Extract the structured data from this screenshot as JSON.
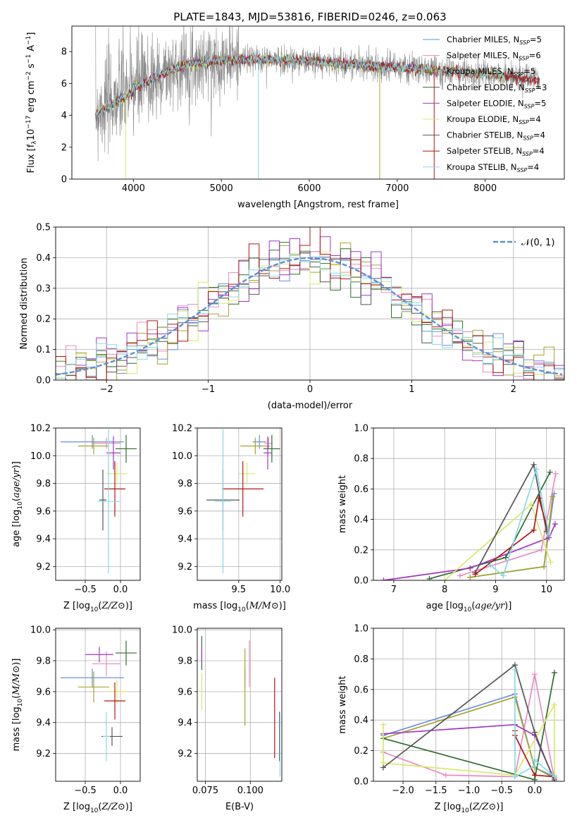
{
  "figure": {
    "title": "PLATE=1843, MJD=53816, FIBERID=0246, z=0.063"
  },
  "colors": {
    "Chabrier MILES": "#6d8fdc",
    "Salpeter MILES": "#e98bc1",
    "Kroupa MILES": "#a4a42a",
    "Chabrier ELODIE": "#2e6b2e",
    "Salpeter ELODIE": "#a335c4",
    "Kroupa ELODIE": "#d9e86a",
    "Chabrier STELIB": "#555555",
    "Salpeter STELIB": "#b31313",
    "Kroupa STELIB": "#86d9e6",
    "data": "#888888",
    "gauss": "#5b8fd6"
  },
  "chart_data": [
    {
      "id": "spectrum",
      "type": "line",
      "title": "PLATE=1843, MJD=53816, FIBERID=0246, z=0.063",
      "xlabel": "wavelength [Angstrom, rest frame]",
      "ylabel": "Flux [fλ10⁻¹⁷ erg cm⁻² s⁻¹ A⁻¹]",
      "xlim": [
        3300,
        8900
      ],
      "ylim": [
        0,
        9.6
      ],
      "xticks": [
        4000,
        5000,
        6000,
        7000,
        8000
      ],
      "yticks": [
        0,
        2,
        4,
        6,
        8
      ],
      "legend": "top-right",
      "legend_entries": [
        {
          "label": "Chabrier MILES, N",
          "sub": "SSP",
          "tail": "=5",
          "key": "Chabrier MILES"
        },
        {
          "label": "Salpeter MILES, N",
          "sub": "SSP",
          "tail": "=6",
          "key": "Salpeter MILES"
        },
        {
          "label": "Kroupa MILES, N",
          "sub": "SSP",
          "tail": "=5",
          "key": "Kroupa MILES"
        },
        {
          "label": "Chabrier ELODIE, N",
          "sub": "SSP",
          "tail": "=3",
          "key": "Chabrier ELODIE"
        },
        {
          "label": "Salpeter ELODIE, N",
          "sub": "SSP",
          "tail": "=5",
          "key": "Salpeter ELODIE"
        },
        {
          "label": "Kroupa ELODIE, N",
          "sub": "SSP",
          "tail": "=4",
          "key": "Kroupa ELODIE"
        },
        {
          "label": "Chabrier STELIB, N",
          "sub": "SSP",
          "tail": "=4",
          "key": "Chabrier STELIB"
        },
        {
          "label": "Salpeter STELIB, N",
          "sub": "SSP",
          "tail": "=4",
          "key": "Salpeter STELIB"
        },
        {
          "label": "Kroupa STELIB, N",
          "sub": "SSP",
          "tail": "=4",
          "key": "Kroupa STELIB"
        }
      ],
      "continuum": [
        [
          3570,
          4.3
        ],
        [
          3700,
          4.8
        ],
        [
          3850,
          5.3
        ],
        [
          3950,
          5.6
        ],
        [
          4100,
          6.0
        ],
        [
          4300,
          6.5
        ],
        [
          4600,
          7.2
        ],
        [
          5000,
          7.45
        ],
        [
          5500,
          7.5
        ],
        [
          6000,
          7.4
        ],
        [
          6500,
          7.2
        ],
        [
          7000,
          7.0
        ],
        [
          7400,
          6.85
        ],
        [
          7800,
          6.65
        ],
        [
          8200,
          6.45
        ],
        [
          8600,
          6.2
        ],
        [
          8800,
          6.1
        ]
      ],
      "model_end": 7420,
      "data_end": 8620,
      "spikes": [
        [
          3910,
          0
        ],
        [
          5420,
          0
        ],
        [
          6800,
          0
        ],
        [
          7420,
          0
        ]
      ]
    },
    {
      "id": "residuals",
      "type": "histogram",
      "xlabel": "(data-model)/error",
      "ylabel": "Normed distribution",
      "xlim": [
        -2.5,
        2.5
      ],
      "ylim": [
        0,
        0.5
      ],
      "xticks": [
        -2,
        -1,
        0,
        1,
        2
      ],
      "yticks": [
        0.0,
        0.1,
        0.2,
        0.3,
        0.4,
        0.5
      ],
      "bin_width": 0.1,
      "legend_label": "𝒩(0, 1)",
      "gaussian": {
        "mu": 0,
        "sigma": 1
      }
    },
    {
      "id": "age-vs-Z",
      "type": "errorbar",
      "xlabel": "Z [log10(Z/Z⊙)]",
      "ylabel": "age  [log10(age/yr)]",
      "xlim": [
        -0.92,
        0.28
      ],
      "ylim": [
        9.1,
        10.2
      ],
      "xticks": [
        -0.5,
        0.0
      ],
      "yticks": [
        9.2,
        9.4,
        9.6,
        9.8,
        10.0,
        10.2
      ],
      "points": [
        {
          "key": "Chabrier MILES",
          "x": -0.4,
          "xerr": 0.45,
          "y": 10.1,
          "yerr": 0.05
        },
        {
          "key": "Salpeter MILES",
          "x": -0.2,
          "xerr": 0.2,
          "y": 10.09,
          "yerr": 0.04
        },
        {
          "key": "Kroupa MILES",
          "x": -0.38,
          "xerr": 0.22,
          "y": 10.07,
          "yerr": 0.06
        },
        {
          "key": "Chabrier ELODIE",
          "x": 0.08,
          "xerr": 0.15,
          "y": 10.05,
          "yerr": 0.1
        },
        {
          "key": "Salpeter ELODIE",
          "x": -0.1,
          "xerr": 0.1,
          "y": 10.02,
          "yerr": 0.12
        },
        {
          "key": "Kroupa ELODIE",
          "x": -0.05,
          "xerr": 0.15,
          "y": 9.87,
          "yerr": 0.08
        },
        {
          "key": "Chabrier STELIB",
          "x": -0.25,
          "xerr": 0.05,
          "y": 9.68,
          "yerr": 0.22
        },
        {
          "key": "Salpeter STELIB",
          "x": -0.08,
          "xerr": 0.15,
          "y": 9.76,
          "yerr": 0.2
        },
        {
          "key": "Kroupa STELIB",
          "x": -0.17,
          "xerr": 0.16,
          "y": 9.67,
          "yerr": 0.52
        }
      ]
    },
    {
      "id": "age-vs-mass",
      "type": "errorbar",
      "xlabel": "mass [log10(M/M⊙)]",
      "ylabel": "",
      "xlim": [
        9.0,
        10.02
      ],
      "ylim": [
        9.1,
        10.2
      ],
      "xticks": [
        9.5,
        10.0
      ],
      "yticks": [
        9.2,
        9.4,
        9.6,
        9.8,
        10.0,
        10.2
      ],
      "points": [
        {
          "key": "Chabrier MILES",
          "x": 9.75,
          "xerr": 0.08,
          "y": 10.1,
          "yerr": 0.05
        },
        {
          "key": "Salpeter MILES",
          "x": 9.86,
          "xerr": 0.05,
          "y": 10.09,
          "yerr": 0.04
        },
        {
          "key": "Kroupa MILES",
          "x": 9.7,
          "xerr": 0.18,
          "y": 10.07,
          "yerr": 0.06
        },
        {
          "key": "Chabrier ELODIE",
          "x": 9.9,
          "xerr": 0.1,
          "y": 10.05,
          "yerr": 0.1
        },
        {
          "key": "Salpeter ELODIE",
          "x": 9.85,
          "xerr": 0.05,
          "y": 10.02,
          "yerr": 0.12
        },
        {
          "key": "Kroupa ELODIE",
          "x": 9.6,
          "xerr": 0.1,
          "y": 9.87,
          "yerr": 0.08
        },
        {
          "key": "Chabrier STELIB",
          "x": 9.31,
          "xerr": 0.2,
          "y": 9.68,
          "yerr": 0.22
        },
        {
          "key": "Salpeter STELIB",
          "x": 9.55,
          "xerr": 0.25,
          "y": 9.76,
          "yerr": 0.2
        },
        {
          "key": "Kroupa STELIB",
          "x": 9.31,
          "xerr": 0.1,
          "y": 9.67,
          "yerr": 0.52
        }
      ]
    },
    {
      "id": "weight-vs-age",
      "type": "line",
      "xlabel": "age  [log10(age/yr)]",
      "ylabel": "mass weight",
      "xlim": [
        6.6,
        10.35
      ],
      "ylim": [
        0,
        1.0
      ],
      "xticks": [
        7,
        8,
        9,
        10
      ],
      "yticks": [
        0.0,
        0.2,
        0.4,
        0.6,
        0.8,
        1.0
      ],
      "series": [
        {
          "key": "Chabrier MILES",
          "points": [
            [
              8.5,
              0.02
            ],
            [
              9.95,
              0.09
            ],
            [
              10.15,
              0.57
            ]
          ]
        },
        {
          "key": "Salpeter MILES",
          "points": [
            [
              8.3,
              0.03
            ],
            [
              9.9,
              0.2
            ],
            [
              10.18,
              0.7
            ]
          ]
        },
        {
          "key": "Kroupa MILES",
          "points": [
            [
              8.5,
              0.02
            ],
            [
              9.95,
              0.09
            ],
            [
              10.12,
              0.55
            ]
          ]
        },
        {
          "key": "Chabrier ELODIE",
          "points": [
            [
              7.7,
              0.01
            ],
            [
              9.2,
              0.15
            ],
            [
              10.07,
              0.71
            ]
          ]
        },
        {
          "key": "Salpeter ELODIE",
          "points": [
            [
              6.8,
              0.0
            ],
            [
              8.5,
              0.08
            ],
            [
              10.05,
              0.28
            ],
            [
              10.17,
              0.37
            ]
          ]
        },
        {
          "key": "Kroupa ELODIE",
          "points": [
            [
              8.0,
              0.0
            ],
            [
              9.7,
              0.5
            ],
            [
              10.08,
              0.12
            ]
          ]
        },
        {
          "key": "Chabrier STELIB",
          "points": [
            [
              8.6,
              0.05
            ],
            [
              9.75,
              0.76
            ],
            [
              10.0,
              0.32
            ]
          ]
        },
        {
          "key": "Salpeter STELIB",
          "points": [
            [
              8.6,
              0.04
            ],
            [
              9.75,
              0.33
            ],
            [
              9.85,
              0.54
            ],
            [
              10.05,
              0.3
            ]
          ]
        },
        {
          "key": "Kroupa STELIB",
          "points": [
            [
              8.9,
              0.1
            ],
            [
              9.15,
              0.03
            ],
            [
              9.8,
              0.73
            ],
            [
              10.05,
              0.3
            ]
          ]
        }
      ]
    },
    {
      "id": "mass-vs-Z",
      "type": "errorbar",
      "xlabel": "Z [log10(Z/Z⊙)]",
      "ylabel": "mass [log10(M/M⊙)]",
      "xlim": [
        -0.92,
        0.28
      ],
      "ylim": [
        9.02,
        10.01
      ],
      "xticks": [
        -0.5,
        0.0
      ],
      "yticks": [
        9.2,
        9.4,
        9.6,
        9.8,
        10.0
      ],
      "points": [
        {
          "key": "Chabrier MILES",
          "x": -0.4,
          "xerr": 0.45,
          "y": 9.69,
          "yerr": 0.06
        },
        {
          "key": "Salpeter MILES",
          "x": -0.2,
          "xerr": 0.2,
          "y": 9.78,
          "yerr": 0.08
        },
        {
          "key": "Kroupa MILES",
          "x": -0.38,
          "xerr": 0.22,
          "y": 9.63,
          "yerr": 0.1
        },
        {
          "key": "Chabrier ELODIE",
          "x": 0.08,
          "xerr": 0.15,
          "y": 9.85,
          "yerr": 0.08
        },
        {
          "key": "Salpeter ELODIE",
          "x": -0.3,
          "xerr": 0.2,
          "y": 9.84,
          "yerr": 0.05
        },
        {
          "key": "Kroupa ELODIE",
          "x": -0.05,
          "xerr": 0.15,
          "y": 9.6,
          "yerr": 0.08
        },
        {
          "key": "Chabrier STELIB",
          "x": -0.12,
          "xerr": 0.15,
          "y": 9.31,
          "yerr": 0.06
        },
        {
          "key": "Salpeter STELIB",
          "x": -0.08,
          "xerr": 0.15,
          "y": 9.54,
          "yerr": 0.12
        },
        {
          "key": "Kroupa STELIB",
          "x": -0.2,
          "xerr": 0.05,
          "y": 9.31,
          "yerr": 0.16
        }
      ]
    },
    {
      "id": "mass-vs-EBV",
      "type": "errorbar",
      "xlabel": "E(B-V)",
      "ylabel": "",
      "xlim": [
        0.0705,
        0.1175
      ],
      "ylim": [
        9.02,
        10.01
      ],
      "xticks": [
        0.075,
        0.1
      ],
      "yticks": [
        9.2,
        9.4,
        9.6,
        9.8,
        10.0
      ],
      "points": [
        {
          "key": "Chabrier MILES",
          "x": 0.097,
          "xerr": 0,
          "y": 9.69,
          "yerr": 0.06
        },
        {
          "key": "Salpeter MILES",
          "x": 0.0995,
          "xerr": 0,
          "y": 9.78,
          "yerr": 0.15
        },
        {
          "key": "Kroupa MILES",
          "x": 0.097,
          "xerr": 0,
          "y": 9.63,
          "yerr": 0.25
        },
        {
          "key": "Chabrier ELODIE",
          "x": 0.073,
          "xerr": 0,
          "y": 9.85,
          "yerr": 0.11
        },
        {
          "key": "Salpeter ELODIE",
          "x": 0.073,
          "xerr": 0,
          "y": 9.84,
          "yerr": 0.05
        },
        {
          "key": "Kroupa ELODIE",
          "x": 0.073,
          "xerr": 0,
          "y": 9.6,
          "yerr": 0.12
        },
        {
          "key": "Chabrier STELIB",
          "x": 0.1162,
          "xerr": 0,
          "y": 9.31,
          "yerr": 0.16
        },
        {
          "key": "Salpeter STELIB",
          "x": 0.1135,
          "xerr": 0,
          "y": 9.43,
          "yerr": 0.26
        },
        {
          "key": "Kroupa STELIB",
          "x": 0.1165,
          "xerr": 0,
          "y": 9.25,
          "yerr": 0.2
        }
      ]
    },
    {
      "id": "weight-vs-Z",
      "type": "line",
      "xlabel": "Z [log10(Z/Z⊙)]",
      "ylabel": "mass weight",
      "xlim": [
        -2.45,
        0.45
      ],
      "ylim": [
        0,
        1.0
      ],
      "xticks": [
        -2.0,
        -1.5,
        -1.0,
        -0.5,
        0.0
      ],
      "yticks": [
        0.0,
        0.2,
        0.4,
        0.6,
        0.8,
        1.0
      ],
      "series": [
        {
          "key": "Chabrier MILES",
          "points": [
            [
              -2.3,
              0.3
            ],
            [
              -0.3,
              0.57
            ],
            [
              0.0,
              0.09
            ],
            [
              0.3,
              0.03
            ]
          ]
        },
        {
          "key": "Salpeter MILES",
          "points": [
            [
              -2.3,
              0.19
            ],
            [
              -1.35,
              0.04
            ],
            [
              -0.3,
              0.03
            ],
            [
              0.0,
              0.7
            ],
            [
              0.3,
              0.01
            ]
          ]
        },
        {
          "key": "Kroupa MILES",
          "points": [
            [
              -2.3,
              0.28
            ],
            [
              -0.3,
              0.55
            ],
            [
              0.0,
              0.09
            ],
            [
              0.3,
              0.02
            ]
          ]
        },
        {
          "key": "Chabrier ELODIE",
          "points": [
            [
              -2.3,
              0.28
            ],
            [
              0.0,
              0.01
            ],
            [
              0.3,
              0.71
            ]
          ]
        },
        {
          "key": "Salpeter ELODIE",
          "points": [
            [
              -2.3,
              0.31
            ],
            [
              -0.3,
              0.37
            ],
            [
              0.0,
              0.3
            ],
            [
              0.3,
              0.01
            ]
          ]
        },
        {
          "key": "Kroupa ELODIE",
          "points": [
            [
              -2.3,
              0.37
            ],
            [
              -2.3,
              0.12
            ],
            [
              -0.3,
              0.04
            ],
            [
              0.3,
              0.5
            ],
            [
              0.3,
              0.04
            ]
          ]
        },
        {
          "key": "Chabrier STELIB",
          "points": [
            [
              -2.3,
              0.09
            ],
            [
              -0.3,
              0.76
            ],
            [
              0.0,
              0.32
            ],
            [
              0.3,
              0.0
            ]
          ]
        },
        {
          "key": "Salpeter STELIB",
          "points": [
            [
              -0.3,
              0.33
            ],
            [
              -0.3,
              0.3
            ],
            [
              0.0,
              0.04
            ],
            [
              0.3,
              0.03
            ]
          ]
        },
        {
          "key": "Kroupa STELIB",
          "points": [
            [
              -0.3,
              0.73
            ],
            [
              -0.3,
              0.03
            ],
            [
              0.0,
              0.1
            ],
            [
              0.0,
              0.14
            ],
            [
              0.3,
              0.03
            ]
          ]
        }
      ]
    }
  ]
}
